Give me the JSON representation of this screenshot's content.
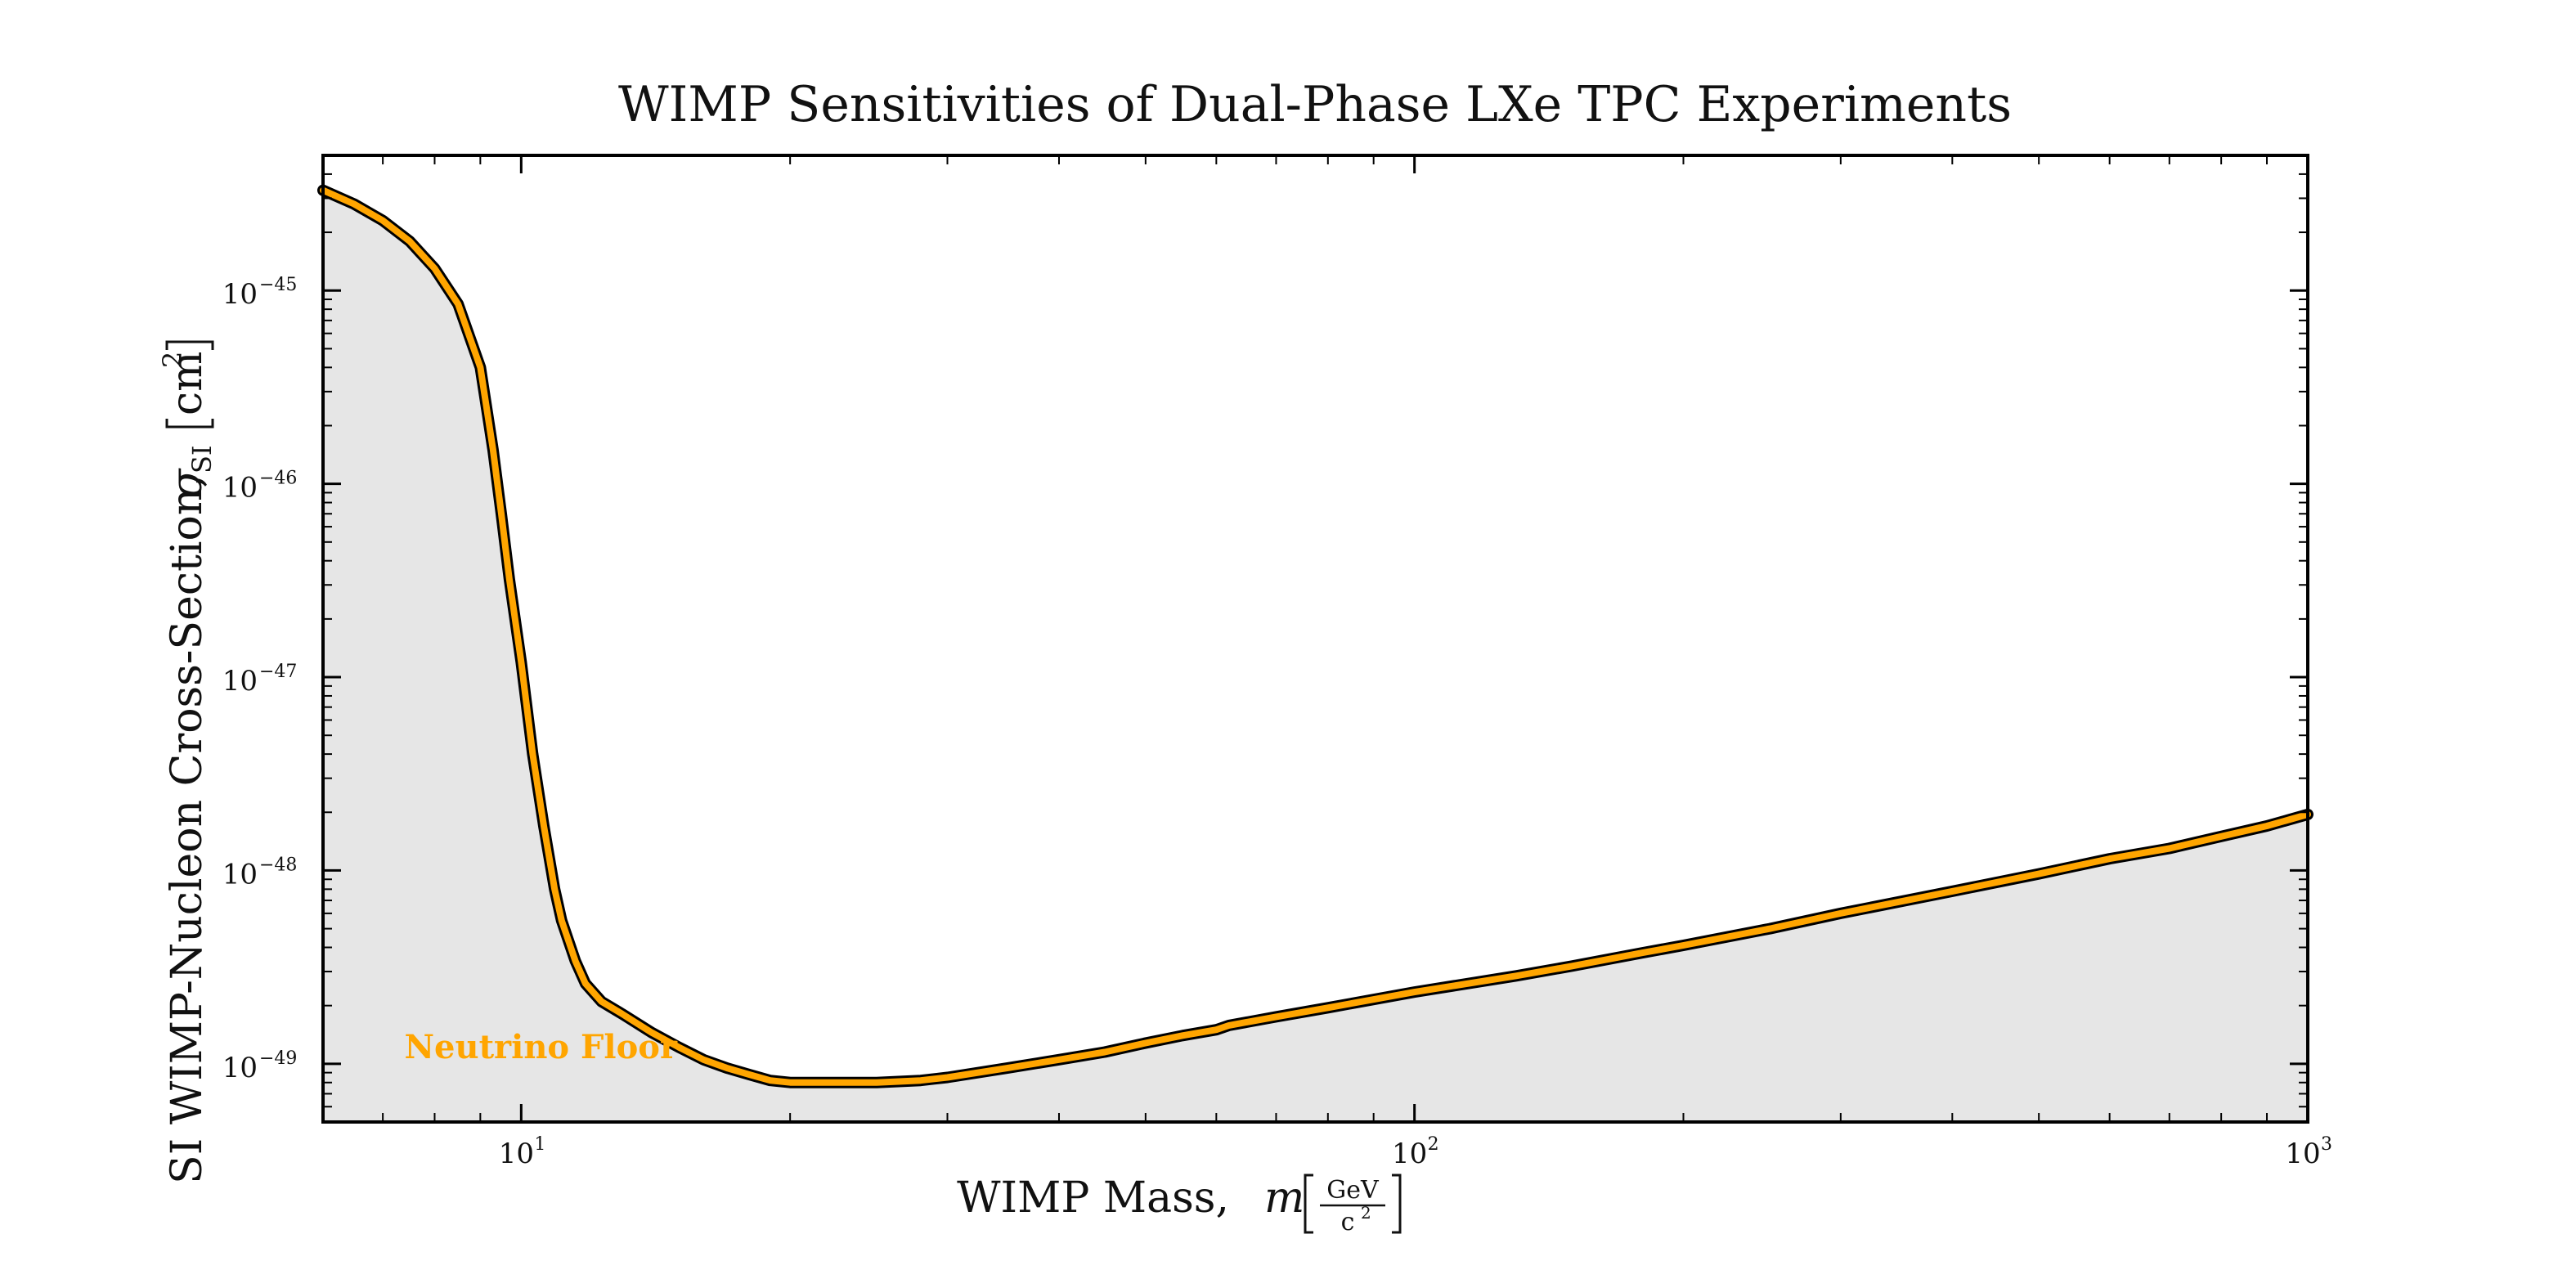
{
  "chart_data": {
    "type": "area",
    "title": "WIMP Sensitivities of Dual-Phase LXe TPC Experiments",
    "xlabel": "WIMP Mass,  m [GeV/c²]",
    "xlabel_parts": {
      "text": "WIMP Mass,",
      "var": "m",
      "unit_num": "GeV",
      "unit_den": "c",
      "unit_den_exp": "2"
    },
    "ylabel": "SI WIMP-Nucleon Cross-Section,  σSI [cm²]",
    "ylabel_parts": {
      "text": "SI WIMP-Nucleon Cross-Section,",
      "var": "σ",
      "sub": "SI",
      "unit": "cm",
      "unit_exp": "2"
    },
    "xscale": "log",
    "yscale": "log",
    "xlim": [
      6.0,
      1000
    ],
    "ylim": [
      5e-50,
      5e-45
    ],
    "grid": false,
    "xticks": [
      {
        "value": 10,
        "base": "10",
        "exp": "1"
      },
      {
        "value": 100,
        "base": "10",
        "exp": "2"
      },
      {
        "value": 1000,
        "base": "10",
        "exp": "3"
      }
    ],
    "yticks": [
      {
        "value": 1e-45,
        "base": "10",
        "exp": "−45"
      },
      {
        "value": 1e-46,
        "base": "10",
        "exp": "−46"
      },
      {
        "value": 1e-47,
        "base": "10",
        "exp": "−47"
      },
      {
        "value": 1e-48,
        "base": "10",
        "exp": "−48"
      },
      {
        "value": 1e-49,
        "base": "10",
        "exp": "−49"
      }
    ],
    "series": [
      {
        "name": "Neutrino Floor",
        "color": "#FFA500",
        "outline_color": "#000000",
        "fill_color": "#E6E6E6",
        "x": [
          6.0,
          6.5,
          7.0,
          7.5,
          8.0,
          8.5,
          9.0,
          9.3,
          9.5,
          9.7,
          10.0,
          10.3,
          10.6,
          10.9,
          11.1,
          11.5,
          11.8,
          12.3,
          13.0,
          14.0,
          15.0,
          16.0,
          17.0,
          18.0,
          19.0,
          20.0,
          21.0,
          22.0,
          25.0,
          28.0,
          30.0,
          35.0,
          40.0,
          45.0,
          50.0,
          55.0,
          60.0,
          62.0,
          70.0,
          80.0,
          100.0,
          130.0,
          150.0,
          180.0,
          200.0,
          250.0,
          300.0,
          400.0,
          500.0,
          600.0,
          700.0,
          800.0,
          900.0,
          1000.0
        ],
        "y": [
          3.3e-45,
          2.8e-45,
          2.3e-45,
          1.8e-45,
          1.3e-45,
          8.5e-46,
          4e-46,
          1.5e-46,
          7e-47,
          3.2e-47,
          1.2e-47,
          4e-48,
          1.7e-48,
          8e-49,
          5.5e-49,
          3.4e-49,
          2.6e-49,
          2.1e-49,
          1.8e-49,
          1.45e-49,
          1.22e-49,
          1.05e-49,
          9.5e-50,
          8.8e-50,
          8.2e-50,
          8e-50,
          8e-50,
          8e-50,
          8e-50,
          8.2e-50,
          8.5e-50,
          9.5e-50,
          1.05e-49,
          1.15e-49,
          1.28e-49,
          1.4e-49,
          1.5e-49,
          1.58e-49,
          1.75e-49,
          1.95e-49,
          2.35e-49,
          2.85e-49,
          3.2e-49,
          3.75e-49,
          4.1e-49,
          5e-49,
          6e-49,
          7.8e-49,
          9.6e-49,
          1.15e-48,
          1.3e-48,
          1.5e-48,
          1.7e-48,
          1.95e-48
        ]
      }
    ],
    "annotations": [
      {
        "text": "Neutrino Floor",
        "x": 7.4,
        "y": 1.07e-49,
        "color": "#FFA500"
      }
    ]
  }
}
